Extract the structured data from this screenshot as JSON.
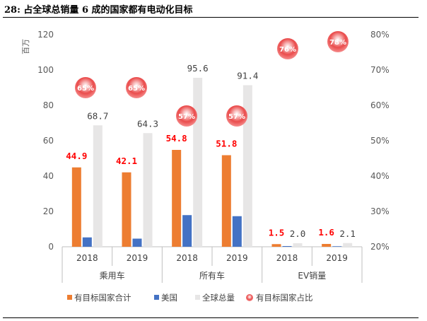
{
  "figure_title": "28:  占全球总销量 6 成的国家都有电动化目标",
  "chart_data": {
    "type": "bar",
    "title": "占全球总销量 6 成的国家都有电动化目标",
    "ylabel": "百万",
    "ylim": [
      0,
      120
    ],
    "yticks": [
      0,
      20,
      40,
      60,
      80,
      100,
      120
    ],
    "y2lim": [
      20,
      80
    ],
    "y2ticks": [
      "20%",
      "30%",
      "40%",
      "50%",
      "60%",
      "70%",
      "80%"
    ],
    "y2tick_values": [
      20,
      30,
      40,
      50,
      60,
      70,
      80
    ],
    "groups": [
      {
        "name": "乘用车",
        "categories": [
          "2018",
          "2019"
        ]
      },
      {
        "name": "所有车",
        "categories": [
          "2018",
          "2019"
        ]
      },
      {
        "name": "EV销量",
        "categories": [
          "2018",
          "2019"
        ]
      }
    ],
    "series": [
      {
        "name": "有目标国家合计",
        "color": "#ed7d31",
        "values": [
          44.9,
          42.1,
          54.8,
          51.8,
          1.5,
          1.6
        ],
        "labels": [
          "44.9",
          "42.1",
          "54.8",
          "51.8",
          "1.5",
          "1.6"
        ]
      },
      {
        "name": "美国",
        "color": "#4472c4",
        "values": [
          5.3,
          4.6,
          17.9,
          17.3,
          0.4,
          0.3
        ]
      },
      {
        "name": "全球总量",
        "color": "#e7e6e6",
        "values": [
          68.7,
          64.3,
          95.6,
          91.4,
          2.0,
          2.1
        ],
        "labels": [
          "68.7",
          "64.3",
          "95.6",
          "91.4",
          "2.0",
          "2.1"
        ]
      },
      {
        "name": "有目标国家占比",
        "color": "#e84747",
        "axis": "secondary",
        "values": [
          65,
          65,
          57,
          57,
          76,
          78
        ],
        "labels": [
          "65%",
          "65%",
          "57%",
          "57%",
          "76%",
          "78%"
        ]
      }
    ],
    "legend_position": "bottom"
  }
}
